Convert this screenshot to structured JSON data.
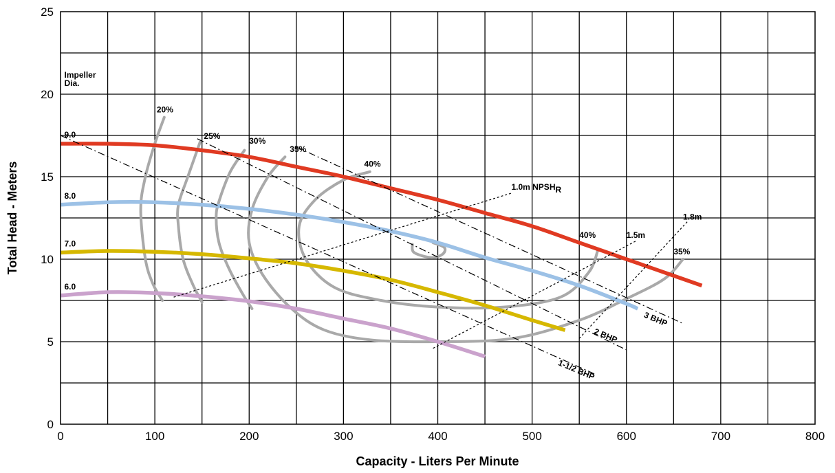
{
  "chart_data": {
    "type": "line",
    "title": "",
    "xlabel": "Capacity - Liters Per Minute",
    "ylabel": "Total Head - Meters",
    "xlim": [
      0,
      800
    ],
    "ylim": [
      0,
      25
    ],
    "x_ticks": [
      "0",
      "100",
      "200",
      "300",
      "400",
      "500",
      "600",
      "700",
      "800"
    ],
    "y_ticks": [
      "0",
      "5",
      "10",
      "15",
      "20",
      "25"
    ],
    "grid": true,
    "impeller_label": [
      "Impeller",
      "Dia."
    ],
    "impeller_series": [
      {
        "name": "9.0",
        "color": "#e03a22",
        "x": [
          0,
          50,
          100,
          150,
          200,
          250,
          300,
          350,
          400,
          450,
          500,
          550,
          600,
          650,
          680
        ],
        "y": [
          17,
          17,
          16.9,
          16.6,
          16.2,
          15.6,
          15,
          14.3,
          13.6,
          12.8,
          12,
          11,
          10,
          9,
          8.4
        ]
      },
      {
        "name": "8.0",
        "color": "#9cc1e6",
        "x": [
          0,
          50,
          100,
          150,
          200,
          250,
          300,
          350,
          400,
          450,
          500,
          550,
          600,
          612
        ],
        "y": [
          13.3,
          13.45,
          13.45,
          13.3,
          13.05,
          12.7,
          12.25,
          11.7,
          11,
          10.1,
          9.3,
          8.4,
          7.3,
          7
        ]
      },
      {
        "name": "7.0",
        "color": "#d6b800",
        "x": [
          0,
          50,
          100,
          150,
          200,
          250,
          300,
          350,
          400,
          450,
          500,
          535
        ],
        "y": [
          10.4,
          10.5,
          10.45,
          10.3,
          10.05,
          9.75,
          9.3,
          8.75,
          8,
          7.2,
          6.3,
          5.7
        ]
      },
      {
        "name": "6.0",
        "color": "#caa2cc",
        "x": [
          0,
          50,
          100,
          150,
          200,
          250,
          300,
          350,
          400,
          450
        ],
        "y": [
          7.8,
          8,
          7.95,
          7.75,
          7.45,
          7,
          6.4,
          5.8,
          5,
          4.1
        ]
      }
    ],
    "efficiency_curves": [
      {
        "label": "20%",
        "points": [
          [
            110,
            18.6
          ],
          [
            100,
            17
          ],
          [
            90,
            15
          ],
          [
            85,
            13
          ],
          [
            90,
            10
          ],
          [
            98,
            8.5
          ],
          [
            108,
            7.5
          ]
        ]
      },
      {
        "label": "25%",
        "points": [
          [
            148,
            17.1
          ],
          [
            135,
            15
          ],
          [
            125,
            13.3
          ],
          [
            125,
            12
          ],
          [
            130,
            10
          ],
          [
            140,
            8.5
          ],
          [
            150,
            7.4
          ]
        ]
      },
      {
        "label": "30%",
        "points": [
          [
            195,
            16.6
          ],
          [
            180,
            15.3
          ],
          [
            168,
            13.5
          ],
          [
            165,
            12.5
          ],
          [
            168,
            11
          ],
          [
            178,
            9.5
          ],
          [
            193,
            7.9
          ],
          [
            203,
            7
          ]
        ]
      },
      {
        "label": "35%",
        "points": [
          [
            238,
            16.2
          ],
          [
            220,
            15
          ],
          [
            203,
            13
          ],
          [
            200,
            11
          ],
          [
            215,
            9
          ],
          [
            245,
            7
          ],
          [
            280,
            5.7
          ],
          [
            330,
            5.1
          ],
          [
            400,
            5
          ],
          [
            480,
            5.2
          ],
          [
            550,
            6.3
          ],
          [
            600,
            7.6
          ],
          [
            640,
            8.8
          ],
          [
            660,
            10
          ]
        ]
      },
      {
        "label": "40%",
        "points": [
          [
            328,
            15.3
          ],
          [
            300,
            14.8
          ],
          [
            270,
            13.6
          ],
          [
            253,
            12
          ],
          [
            260,
            10
          ],
          [
            290,
            8.3
          ],
          [
            340,
            7.5
          ],
          [
            400,
            7.1
          ],
          [
            470,
            7.1
          ],
          [
            530,
            7.7
          ],
          [
            560,
            9.2
          ],
          [
            570,
            10.6
          ]
        ]
      },
      {
        "label": "",
        "points": [
          [
            373,
            10.9
          ],
          [
            375,
            10.4
          ],
          [
            393,
            10.1
          ],
          [
            405,
            10.3
          ],
          [
            407,
            10.7
          ],
          [
            395,
            11
          ]
        ]
      }
    ],
    "bhp_lines": [
      {
        "label": "1-1/2 BHP",
        "x": [
          0,
          568
        ],
        "y": [
          17.5,
          3
        ]
      },
      {
        "label": "2 BHP",
        "x": [
          145,
          600
        ],
        "y": [
          17.3,
          4.5
        ]
      },
      {
        "label": "3 BHP",
        "x": [
          250,
          660
        ],
        "y": [
          16.8,
          6.1
        ]
      }
    ],
    "npsh_lines": [
      {
        "label": "1.0m NPSH",
        "subscript": "R",
        "x": [
          120,
          478
        ],
        "y": [
          7.7,
          14
        ]
      },
      {
        "label": "1.5m",
        "x": [
          395,
          610
        ],
        "y": [
          4.6,
          11.1
        ]
      },
      {
        "label": "1.8m",
        "x": [
          550,
          665
        ],
        "y": [
          5.2,
          12.3
        ]
      }
    ]
  }
}
